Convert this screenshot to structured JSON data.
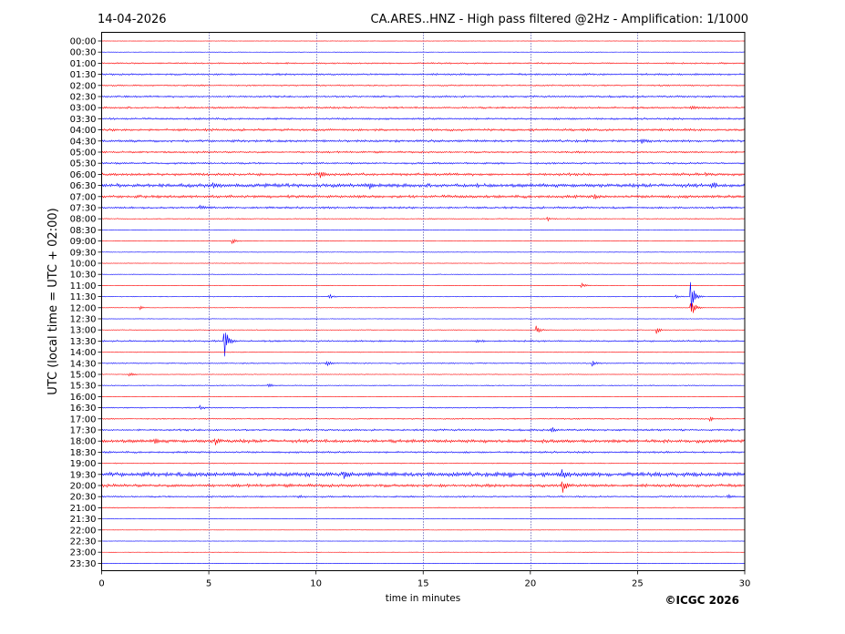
{
  "header": {
    "date": "14-04-2026",
    "title": "CA.ARES..HNZ - High pass filtered @2Hz - Amplification: 1/1000"
  },
  "copyright": "©ICGC 2026",
  "chart_data": {
    "type": "line",
    "subtype": "helicorder",
    "title": "CA.ARES..HNZ - High pass filtered @2Hz - Amplification: 1/1000",
    "xlabel": "time in minutes",
    "ylabel": "UTC (local time = UTC + 02:00)",
    "xlim": [
      0,
      30
    ],
    "xticks": [
      "0",
      "5",
      "10",
      "15",
      "20",
      "25",
      "30"
    ],
    "vertical_gridlines": [
      5,
      10,
      15,
      20,
      25
    ],
    "grid": "vertical-dotted",
    "trace_colors": [
      "#ff0000",
      "#0000ff"
    ],
    "rows": [
      {
        "label": "00:00",
        "noise": 0.15,
        "events": []
      },
      {
        "label": "00:30",
        "noise": 0.2,
        "events": []
      },
      {
        "label": "01:00",
        "noise": 0.6,
        "events": []
      },
      {
        "label": "01:30",
        "noise": 0.8,
        "events": []
      },
      {
        "label": "02:00",
        "noise": 0.6,
        "events": []
      },
      {
        "label": "02:30",
        "noise": 0.8,
        "events": []
      },
      {
        "label": "03:00",
        "noise": 0.8,
        "events": [
          {
            "x": 27.5,
            "amp": 3
          }
        ]
      },
      {
        "label": "03:30",
        "noise": 0.8,
        "events": []
      },
      {
        "label": "04:00",
        "noise": 1.0,
        "events": []
      },
      {
        "label": "04:30",
        "noise": 1.0,
        "events": [
          {
            "x": 25.2,
            "amp": 3
          }
        ]
      },
      {
        "label": "05:00",
        "noise": 0.8,
        "events": []
      },
      {
        "label": "05:30",
        "noise": 0.8,
        "events": []
      },
      {
        "label": "06:00",
        "noise": 1.1,
        "events": [
          {
            "x": 10.2,
            "amp": 3
          },
          {
            "x": 28.2,
            "amp": 2
          }
        ]
      },
      {
        "label": "06:30",
        "noise": 1.5,
        "events": [
          {
            "x": 5.2,
            "amp": 3
          },
          {
            "x": 12.5,
            "amp": 3
          },
          {
            "x": 28.5,
            "amp": 3
          }
        ]
      },
      {
        "label": "07:00",
        "noise": 1.2,
        "events": [
          {
            "x": 23,
            "amp": 2.5
          }
        ]
      },
      {
        "label": "07:30",
        "noise": 0.9,
        "events": [
          {
            "x": 4.6,
            "amp": 3
          }
        ]
      },
      {
        "label": "08:00",
        "noise": 0.4,
        "events": [
          {
            "x": 20.8,
            "amp": 2.5
          }
        ]
      },
      {
        "label": "08:30",
        "noise": 0.2,
        "events": []
      },
      {
        "label": "09:00",
        "noise": 0.2,
        "events": [
          {
            "x": 6.1,
            "amp": 3
          }
        ]
      },
      {
        "label": "09:30",
        "noise": 0.25,
        "events": []
      },
      {
        "label": "10:00",
        "noise": 0.2,
        "events": []
      },
      {
        "label": "10:30",
        "noise": 0.25,
        "events": []
      },
      {
        "label": "11:00",
        "noise": 0.2,
        "events": [
          {
            "x": 22.4,
            "amp": 3
          }
        ]
      },
      {
        "label": "11:30",
        "noise": 0.3,
        "events": [
          {
            "x": 10.6,
            "amp": 3
          },
          {
            "x": 26.8,
            "amp": 2
          },
          {
            "x": 27.5,
            "amp": 20
          }
        ]
      },
      {
        "label": "12:00",
        "noise": 0.2,
        "events": [
          {
            "x": 1.8,
            "amp": 2
          },
          {
            "x": 27.5,
            "amp": 14
          }
        ]
      },
      {
        "label": "12:30",
        "noise": 0.2,
        "events": []
      },
      {
        "label": "13:00",
        "noise": 0.3,
        "events": [
          {
            "x": 20.3,
            "amp": 5
          },
          {
            "x": 25.9,
            "amp": 4
          }
        ]
      },
      {
        "label": "13:30",
        "noise": 0.7,
        "events": [
          {
            "x": 5.75,
            "amp": 18
          },
          {
            "x": 17.5,
            "amp": 2.5
          }
        ]
      },
      {
        "label": "14:00",
        "noise": 0.3,
        "events": []
      },
      {
        "label": "14:30",
        "noise": 0.5,
        "events": [
          {
            "x": 10.5,
            "amp": 3
          },
          {
            "x": 22.9,
            "amp": 3
          }
        ]
      },
      {
        "label": "15:00",
        "noise": 0.3,
        "events": [
          {
            "x": 1.3,
            "amp": 3
          }
        ]
      },
      {
        "label": "15:30",
        "noise": 0.4,
        "events": [
          {
            "x": 7.8,
            "amp": 2
          }
        ]
      },
      {
        "label": "16:00",
        "noise": 0.2,
        "events": []
      },
      {
        "label": "16:30",
        "noise": 0.5,
        "events": [
          {
            "x": 4.6,
            "amp": 2.5
          }
        ]
      },
      {
        "label": "17:00",
        "noise": 0.5,
        "events": [
          {
            "x": 28.4,
            "amp": 2
          }
        ]
      },
      {
        "label": "17:30",
        "noise": 0.8,
        "events": [
          {
            "x": 21,
            "amp": 2.5
          }
        ]
      },
      {
        "label": "18:00",
        "noise": 1.4,
        "events": [
          {
            "x": 2.5,
            "amp": 3
          },
          {
            "x": 5.3,
            "amp": 3.5
          }
        ]
      },
      {
        "label": "18:30",
        "noise": 0.8,
        "events": []
      },
      {
        "label": "19:00",
        "noise": 0.4,
        "events": []
      },
      {
        "label": "19:30",
        "noise": 1.8,
        "events": [
          {
            "x": 11.3,
            "amp": 3
          },
          {
            "x": 19,
            "amp": 3
          },
          {
            "x": 21.5,
            "amp": 5
          }
        ]
      },
      {
        "label": "20:00",
        "noise": 1.3,
        "events": [
          {
            "x": 21.5,
            "amp": 8
          }
        ]
      },
      {
        "label": "20:30",
        "noise": 0.7,
        "events": [
          {
            "x": 9.2,
            "amp": 2
          },
          {
            "x": 29.2,
            "amp": 2
          }
        ]
      },
      {
        "label": "21:00",
        "noise": 0.4,
        "events": []
      },
      {
        "label": "21:30",
        "noise": 0.2,
        "events": []
      },
      {
        "label": "22:00",
        "noise": 0.15,
        "events": []
      },
      {
        "label": "22:30",
        "noise": 0.15,
        "events": []
      },
      {
        "label": "23:00",
        "noise": 0.1,
        "events": []
      },
      {
        "label": "23:30",
        "noise": 0.1,
        "events": []
      }
    ]
  }
}
